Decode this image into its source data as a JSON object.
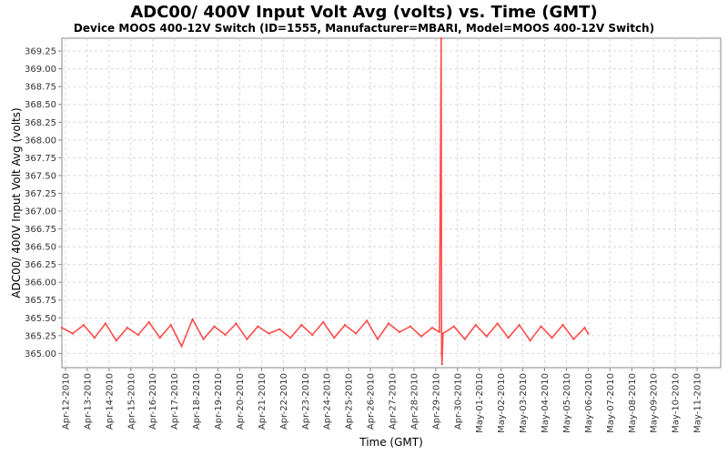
{
  "chart_data": {
    "type": "line",
    "title": "ADC00/ 400V Input Volt Avg (volts) vs. Time (GMT)",
    "subtitle": "Device MOOS 400-12V Switch (ID=1555, Manufacturer=MBARI, Model=MOOS 400-12V Switch)",
    "xlabel": "Time (GMT)",
    "ylabel": "ADC00/ 400V Input Volt Avg (volts)",
    "ylim": [
      364.8,
      369.43
    ],
    "xlim": [
      "2010-04-11T20:00",
      "2010-05-12T02:00"
    ],
    "x_tick_labels": [
      "Apr-12-2010",
      "Apr-13-2010",
      "Apr-14-2010",
      "Apr-15-2010",
      "Apr-16-2010",
      "Apr-17-2010",
      "Apr-18-2010",
      "Apr-19-2010",
      "Apr-20-2010",
      "Apr-21-2010",
      "Apr-22-2010",
      "Apr-23-2010",
      "Apr-24-2010",
      "Apr-25-2010",
      "Apr-26-2010",
      "Apr-27-2010",
      "Apr-28-2010",
      "Apr-29-2010",
      "Apr-30-2010",
      "May-01-2010",
      "May-02-2010",
      "May-03-2010",
      "May-04-2010",
      "May-05-2010",
      "May-06-2010",
      "May-07-2010",
      "May-08-2010",
      "May-09-2010",
      "May-10-2010",
      "May-11-2010"
    ],
    "x_tick_dates": [
      "2010-04-12",
      "2010-04-13",
      "2010-04-14",
      "2010-04-15",
      "2010-04-16",
      "2010-04-17",
      "2010-04-18",
      "2010-04-19",
      "2010-04-20",
      "2010-04-21",
      "2010-04-22",
      "2010-04-23",
      "2010-04-24",
      "2010-04-25",
      "2010-04-26",
      "2010-04-27",
      "2010-04-28",
      "2010-04-29",
      "2010-04-30",
      "2010-05-01",
      "2010-05-02",
      "2010-05-03",
      "2010-05-04",
      "2010-05-05",
      "2010-05-06",
      "2010-05-07",
      "2010-05-08",
      "2010-05-09",
      "2010-05-10",
      "2010-05-11"
    ],
    "y_ticks": [
      365.0,
      365.25,
      365.5,
      365.75,
      366.0,
      366.25,
      366.5,
      366.75,
      367.0,
      367.25,
      367.5,
      367.75,
      368.0,
      368.25,
      368.5,
      368.75,
      369.0,
      369.25
    ],
    "y_tick_labels": [
      "365.00",
      "365.25",
      "365.50",
      "365.75",
      "366.00",
      "366.25",
      "366.50",
      "366.75",
      "367.00",
      "367.25",
      "367.50",
      "367.75",
      "368.00",
      "368.25",
      "368.50",
      "368.75",
      "369.00",
      "369.25"
    ],
    "grid": true,
    "legend": "none",
    "series_color": "#ff4c4c",
    "series": [
      {
        "x": [
          "2010-04-11T20:00",
          "2010-04-12T08:00",
          "2010-04-12T20:00",
          "2010-04-13T08:00",
          "2010-04-13T20:00",
          "2010-04-14T08:00",
          "2010-04-14T20:00",
          "2010-04-15T08:00",
          "2010-04-15T20:00",
          "2010-04-16T08:00",
          "2010-04-16T20:00",
          "2010-04-17T08:00",
          "2010-04-17T20:00",
          "2010-04-18T08:00",
          "2010-04-18T20:00",
          "2010-04-19T08:00",
          "2010-04-19T20:00",
          "2010-04-20T08:00",
          "2010-04-20T20:00",
          "2010-04-21T08:00",
          "2010-04-21T20:00",
          "2010-04-22T08:00",
          "2010-04-22T20:00",
          "2010-04-23T08:00",
          "2010-04-23T20:00",
          "2010-04-24T08:00",
          "2010-04-24T20:00",
          "2010-04-25T08:00",
          "2010-04-25T20:00",
          "2010-04-26T08:00",
          "2010-04-26T20:00",
          "2010-04-27T08:00",
          "2010-04-27T20:00",
          "2010-04-28T08:00",
          "2010-04-28T20:00",
          "2010-04-29T04:00",
          "2010-04-29T06:00",
          "2010-04-29T06:30",
          "2010-04-29T07:00",
          "2010-04-29T08:00",
          "2010-04-29T20:00",
          "2010-04-30T08:00",
          "2010-04-30T20:00",
          "2010-05-01T08:00",
          "2010-05-01T20:00",
          "2010-05-02T08:00",
          "2010-05-02T20:00",
          "2010-05-03T08:00",
          "2010-05-03T20:00",
          "2010-05-04T08:00",
          "2010-05-04T20:00",
          "2010-05-05T08:00",
          "2010-05-05T20:00",
          "2010-05-06T00:00"
        ],
        "y": [
          365.36,
          365.28,
          365.4,
          365.22,
          365.42,
          365.18,
          365.36,
          365.26,
          365.44,
          365.22,
          365.4,
          365.1,
          365.48,
          365.2,
          365.38,
          365.26,
          365.42,
          365.2,
          365.38,
          365.28,
          365.34,
          365.22,
          365.4,
          365.26,
          365.44,
          365.22,
          365.4,
          365.28,
          365.46,
          365.2,
          365.42,
          365.3,
          365.38,
          365.24,
          365.36,
          365.3,
          369.43,
          365.0,
          364.85,
          365.28,
          365.38,
          365.2,
          365.4,
          365.24,
          365.42,
          365.22,
          365.4,
          365.18,
          365.38,
          365.22,
          365.4,
          365.2,
          365.36,
          365.28
        ]
      }
    ]
  }
}
